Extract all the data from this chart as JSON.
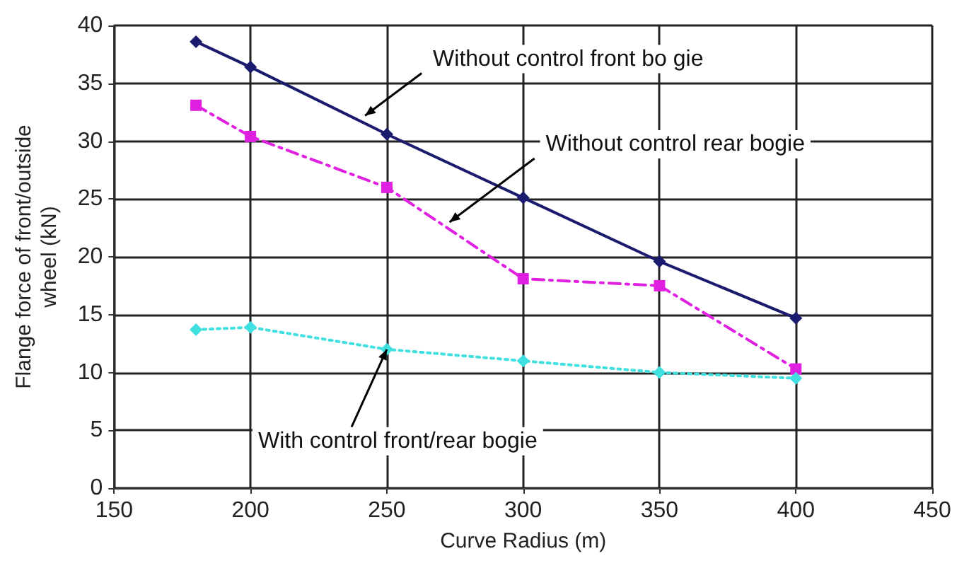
{
  "chart_data": {
    "type": "line",
    "xlabel": "Curve Radius (m)",
    "ylabel": "Flange force of front/outside wheel (kN)",
    "x": [
      180,
      200,
      250,
      300,
      350,
      400
    ],
    "series": [
      {
        "color": "#1a1a6e",
        "marker": "diamond",
        "line_style": "solid",
        "values": [
          38.6,
          36.4,
          30.6,
          25.1,
          19.6,
          14.7
        ]
      },
      {
        "color": "#e020e0",
        "marker": "square",
        "line_style": "dashed",
        "values": [
          33.1,
          30.4,
          26.0,
          18.1,
          17.5,
          10.3
        ]
      },
      {
        "color": "#40e0e0",
        "marker": "diamond",
        "line_style": "dotted",
        "values": [
          13.7,
          13.9,
          12.0,
          11.0,
          10.0,
          9.5
        ]
      }
    ],
    "xlim": [
      150,
      450
    ],
    "xticks": [
      150,
      200,
      250,
      300,
      350,
      400,
      450
    ],
    "ylim": [
      0,
      40
    ],
    "yticks": [
      0,
      5,
      10,
      15,
      20,
      25,
      30,
      35,
      40
    ],
    "grid": true,
    "annotations": [
      {
        "text": "Without control front bo gie",
        "x": 242,
        "y": 32.2
      },
      {
        "text": "Without control rear bogie",
        "x": 273,
        "y": 23.0
      },
      {
        "text": "With control front/rear bogie",
        "x": 250,
        "y": 12.0
      }
    ]
  }
}
